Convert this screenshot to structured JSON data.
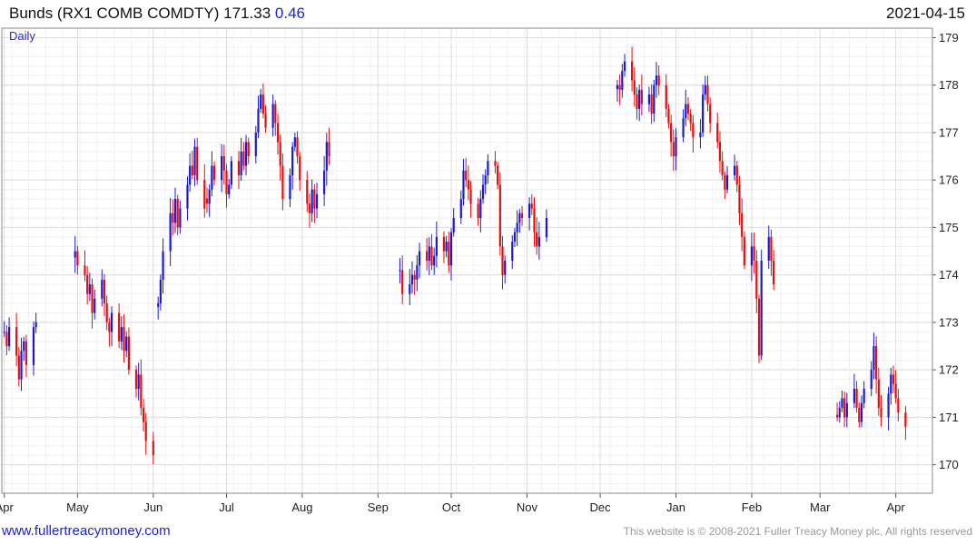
{
  "header": {
    "title": "Bunds (RX1 COMB COMDTY) 171.33",
    "change": "0.46",
    "date": "2021-04-15",
    "period": "Daily"
  },
  "footer": {
    "site": "www.fullertreacymoney.com",
    "copyright": "This website is © 2008-2021 Fuller Treacy Money plc. All rights reserved"
  },
  "colors": {
    "up": "#1a1ad1",
    "down": "#e01010",
    "grid": "#dcdcdc",
    "axis": "#555555"
  },
  "chart_data": {
    "type": "candlestick",
    "ylim": [
      169.4,
      179.2
    ],
    "y_ticks": [
      170,
      171,
      172,
      173,
      174,
      175,
      176,
      177,
      178,
      179
    ],
    "y_axis_position": "right",
    "grid": true,
    "x_labels": [
      {
        "label": "Apr",
        "day": 0
      },
      {
        "label": "May",
        "day": 30
      },
      {
        "label": "Jun",
        "day": 61
      },
      {
        "label": "Jul",
        "day": 91
      },
      {
        "label": "Aug",
        "day": 122
      },
      {
        "label": "Sep",
        "day": 153
      },
      {
        "label": "Oct",
        "day": 183
      },
      {
        "label": "Nov",
        "day": 214
      },
      {
        "label": "Dec",
        "day": 244
      },
      {
        "label": "Jan",
        "day": 275
      },
      {
        "label": "Feb",
        "day": 306
      },
      {
        "label": "Mar",
        "day": 334
      },
      {
        "label": "Apr",
        "day": 365
      }
    ],
    "x_range_days": [
      -1,
      380
    ],
    "closes": [
      {
        "start": "2020-04-01",
        "values": [
          172.8,
          172.5,
          172.9,
          172.3,
          171.8,
          172.4,
          172.6,
          172.1,
          172.9,
          173.0
        ]
      },
      {
        "start": "2020-04-30",
        "values": [
          174.5,
          174.2,
          174.0,
          173.6,
          173.8,
          173.2,
          173.5,
          173.9,
          173.4,
          173.0,
          172.8,
          173.2,
          172.6,
          172.9,
          172.4,
          172.7,
          172.0,
          171.6,
          171.9,
          171.2,
          170.9,
          170.5,
          170.2
        ]
      },
      {
        "start": "2020-06-03",
        "values": [
          173.4,
          173.9,
          174.5,
          175.3,
          175.1,
          175.6,
          175.0,
          175.4,
          175.9,
          176.3,
          176.1,
          176.7,
          176.0,
          175.4
        ]
      },
      {
        "start": "2020-06-23",
        "values": [
          175.5,
          175.8,
          176.3,
          176.0,
          176.5,
          176.2,
          175.7,
          175.9,
          176.4,
          176.1,
          176.6,
          176.3,
          176.8,
          176.5,
          177.0,
          177.5,
          177.8,
          177.4,
          177.1,
          177.6,
          177.2,
          176.8,
          176.3,
          175.6,
          176.1,
          176.7,
          176.9,
          176.5,
          176.0,
          175.5,
          175.3,
          175.8,
          175.4,
          175.7,
          176.2,
          176.8,
          176.5
        ]
      },
      {
        "start": "2020-09-10",
        "values": [
          174.1,
          173.6,
          173.8,
          174.0,
          173.9,
          174.2,
          174.5,
          174.3,
          174.6,
          174.2,
          174.4,
          174.8,
          174.5,
          174.7,
          174.2,
          174.9,
          175.2,
          175.6,
          176.2,
          176.0,
          175.8,
          175.5,
          175.2,
          175.6,
          175.9,
          176.1,
          176.4,
          176.3,
          175.9,
          174.6,
          174.0,
          174.3,
          174.7,
          174.9,
          175.1,
          175.3,
          175.2,
          175.5,
          175.4,
          174.9,
          174.6,
          174.8,
          175.2
        ]
      },
      {
        "start": "2020-12-08",
        "values": [
          178.0,
          177.9,
          178.3,
          178.5,
          178.1,
          177.8,
          177.5,
          177.9,
          177.6,
          177.8,
          177.4,
          178.0,
          178.2,
          178.0,
          177.5,
          177.2,
          176.8,
          176.5,
          176.9,
          177.3,
          177.6,
          177.4,
          177.2,
          176.9,
          177.0,
          177.8,
          178.0,
          177.6,
          177.2,
          176.8,
          176.4,
          176.1,
          175.8,
          176.1,
          176.3,
          175.9,
          175.3,
          174.8,
          174.2,
          174.6,
          174.3,
          173.5,
          172.3,
          174.3,
          174.8,
          174.3,
          173.8
        ]
      },
      {
        "start": "2021-03-06",
        "values": [
          171.0,
          171.2,
          171.4,
          171.0,
          171.3,
          171.6,
          171.2,
          170.9,
          171.3,
          171.6,
          172.0,
          172.5,
          171.8,
          171.2,
          171.0,
          171.5,
          171.9,
          171.7,
          171.4,
          171.1,
          170.8
        ]
      }
    ]
  }
}
